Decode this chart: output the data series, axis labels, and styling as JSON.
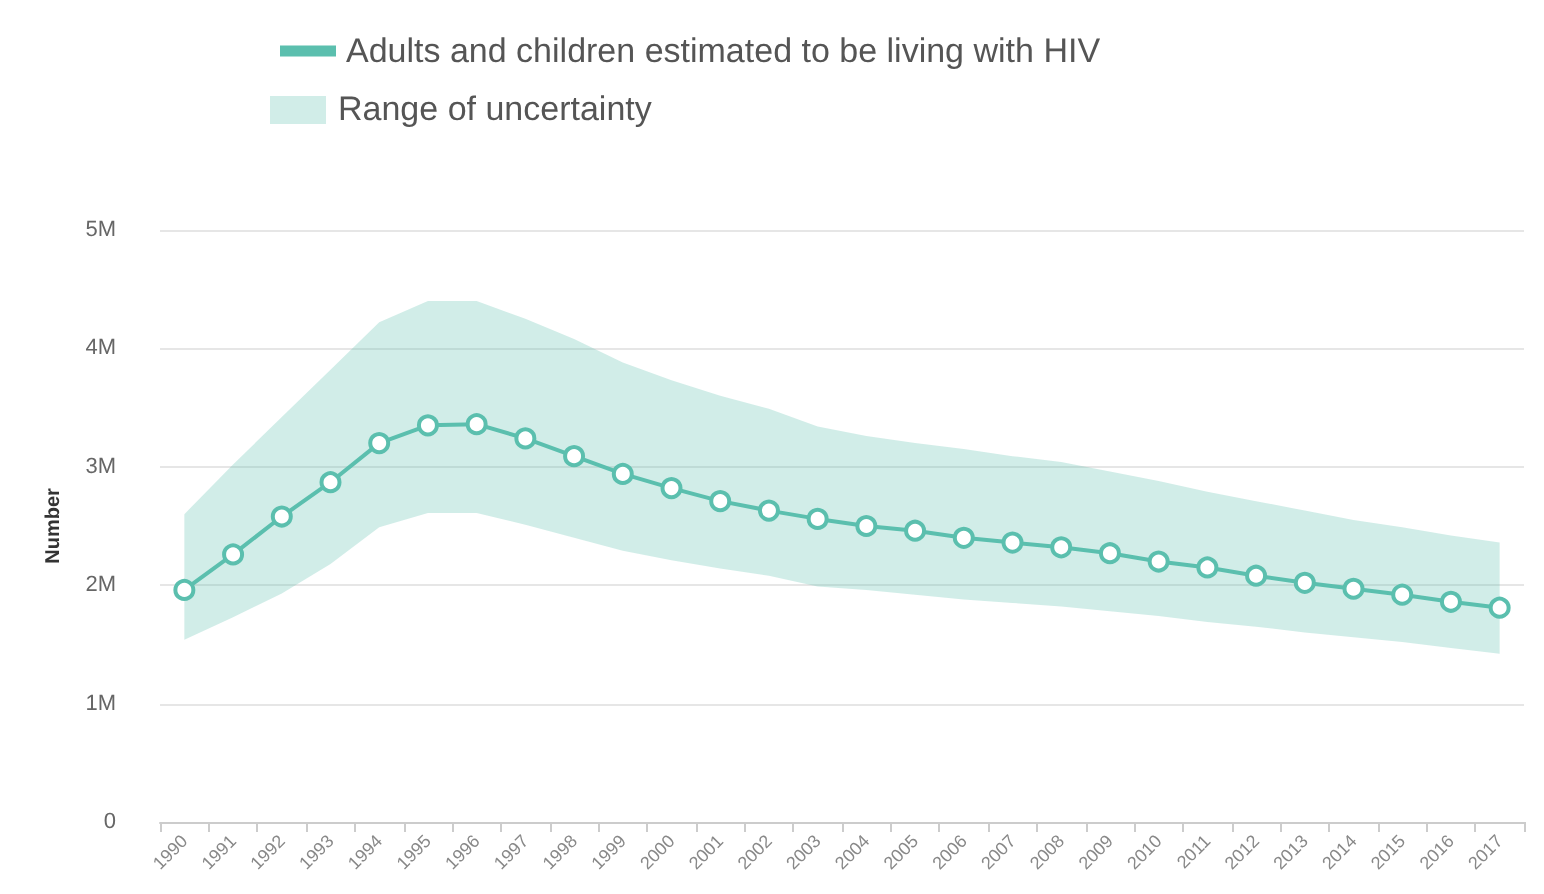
{
  "chart_data": {
    "type": "line",
    "ylabel": "Number",
    "annotations": [
      "Range of uncertainty"
    ],
    "categories": [
      "1990",
      "1991",
      "1992",
      "1993",
      "1994",
      "1995",
      "1996",
      "1997",
      "1998",
      "1999",
      "2000",
      "2001",
      "2002",
      "2003",
      "2004",
      "2005",
      "2006",
      "2007",
      "2008",
      "2009",
      "2010",
      "2011",
      "2012",
      "2013",
      "2014",
      "2015",
      "2016",
      "2017"
    ],
    "series": [
      {
        "name": "Adults and children estimated to be living with HIV",
        "color": "#5bbfae",
        "values": [
          1960000,
          2260000,
          2580000,
          2870000,
          3200000,
          3350000,
          3360000,
          3240000,
          3090000,
          2940000,
          2820000,
          2710000,
          2630000,
          2560000,
          2500000,
          2460000,
          2400000,
          2360000,
          2320000,
          2270000,
          2200000,
          2150000,
          2080000,
          2020000,
          1970000,
          1920000,
          1860000,
          1810000
        ],
        "lower": [
          1540000,
          1730000,
          1930000,
          2180000,
          2490000,
          2610000,
          2610000,
          2510000,
          2400000,
          2290000,
          2210000,
          2140000,
          2080000,
          1990000,
          1960000,
          1920000,
          1880000,
          1850000,
          1820000,
          1780000,
          1740000,
          1690000,
          1650000,
          1600000,
          1560000,
          1520000,
          1470000,
          1420000
        ],
        "upper": [
          2600000,
          3020000,
          3420000,
          3820000,
          4220000,
          4400000,
          4400000,
          4250000,
          4080000,
          3880000,
          3730000,
          3600000,
          3490000,
          3340000,
          3260000,
          3200000,
          3150000,
          3090000,
          3040000,
          2960000,
          2880000,
          2790000,
          2710000,
          2630000,
          2550000,
          2490000,
          2420000,
          2360000
        ]
      }
    ],
    "ylim": [
      0,
      5000000
    ],
    "yticks": [
      0,
      {
        "value": 1000000,
        "label": "1M"
      },
      {
        "value": 2000000,
        "label": "2M"
      },
      {
        "value": 3000000,
        "label": "3M"
      },
      {
        "value": 4000000,
        "label": "4M"
      },
      {
        "value": 5000000,
        "label": "5M"
      }
    ],
    "grid": "y",
    "legend": "top left",
    "marker": "circle",
    "line_style": "solid"
  }
}
